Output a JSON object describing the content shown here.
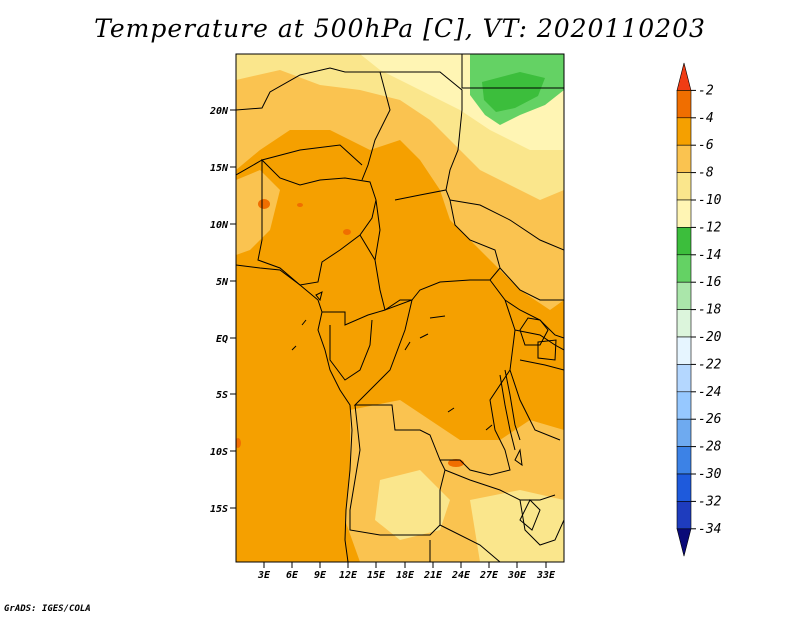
{
  "title": "Temperature at 500hPa [C], VT: 2020110203",
  "credit": "GrADS: IGES/COLA",
  "map": {
    "lat_ticks": [
      "20N",
      "15N",
      "10N",
      "5N",
      "EQ",
      "5S",
      "10S",
      "15S"
    ],
    "lon_ticks": [
      "3E",
      "6E",
      "9E",
      "12E",
      "15E",
      "18E",
      "21E",
      "24E",
      "27E",
      "30E",
      "33E"
    ]
  },
  "colorbar": {
    "labels": [
      "-2",
      "-4",
      "-6",
      "-8",
      "-10",
      "-12",
      "-14",
      "-16",
      "-18",
      "-20",
      "-22",
      "-24",
      "-26",
      "-28",
      "-30",
      "-32",
      "-34"
    ],
    "colors": [
      "#f03c14",
      "#f06e00",
      "#f5a000",
      "#fac350",
      "#fae68c",
      "#fff5b4",
      "#3cbe3c",
      "#64d264",
      "#aae6aa",
      "#dcf5dc",
      "#e6f5ff",
      "#b4d7ff",
      "#96c8ff",
      "#6eaaf0",
      "#3c82e6",
      "#1e5adc",
      "#1e3cbe",
      "#0a0a78"
    ]
  }
}
